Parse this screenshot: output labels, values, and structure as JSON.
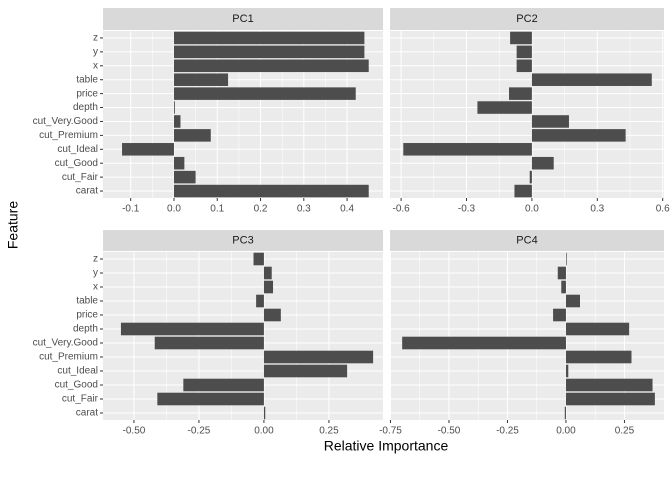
{
  "xlabel": "Relative Importance",
  "ylabel": "Feature",
  "chart_data": [
    {
      "type": "bar",
      "orientation": "horizontal",
      "title": "PC1",
      "color": "#4d4d4d",
      "grid": true,
      "categories": [
        "carat",
        "cut_Fair",
        "cut_Good",
        "cut_Ideal",
        "cut_Premium",
        "cut_Very.Good",
        "depth",
        "price",
        "table",
        "x",
        "y",
        "z"
      ],
      "values": [
        0.45,
        0.05,
        0.024,
        -0.12,
        0.085,
        0.015,
        0.002,
        0.42,
        0.125,
        0.45,
        0.44,
        0.44
      ],
      "xlim": [
        -0.164,
        0.483
      ],
      "xticks": [
        -0.1,
        {
          "value": 0,
          "label": "0.0"
        },
        0.1,
        0.2,
        0.3,
        0.4
      ]
    },
    {
      "type": "bar",
      "orientation": "horizontal",
      "title": "PC2",
      "color": "#4d4d4d",
      "grid": true,
      "categories": [
        "carat",
        "cut_Fair",
        "cut_Good",
        "cut_Ideal",
        "cut_Premium",
        "cut_Very.Good",
        "depth",
        "price",
        "table",
        "x",
        "y",
        "z"
      ],
      "values": [
        -0.08,
        -0.01,
        0.1,
        -0.59,
        0.43,
        0.17,
        -0.25,
        -0.105,
        0.55,
        -0.07,
        -0.07,
        -0.1
      ],
      "xlim": [
        -0.651,
        0.606
      ],
      "xticks": [
        -0.6,
        -0.3,
        {
          "value": 0,
          "label": "0.0"
        },
        0.3,
        0.6
      ]
    },
    {
      "type": "bar",
      "orientation": "horizontal",
      "title": "PC3",
      "color": "#4d4d4d",
      "grid": true,
      "categories": [
        "carat",
        "cut_Fair",
        "cut_Good",
        "cut_Ideal",
        "cut_Premium",
        "cut_Very.Good",
        "depth",
        "price",
        "table",
        "x",
        "y",
        "z"
      ],
      "values": [
        0.005,
        -0.41,
        -0.31,
        0.32,
        0.42,
        -0.42,
        -0.55,
        0.065,
        -0.03,
        0.035,
        0.03,
        -0.04
      ],
      "xlim": [
        -0.619,
        0.458
      ],
      "xticks": [
        {
          "value": -0.5,
          "label": "-0.50"
        },
        -0.25,
        {
          "value": 0,
          "label": "0.00"
        },
        0.25
      ]
    },
    {
      "type": "bar",
      "orientation": "horizontal",
      "title": "PC4",
      "color": "#4d4d4d",
      "grid": true,
      "categories": [
        "carat",
        "cut_Fair",
        "cut_Good",
        "cut_Ideal",
        "cut_Premium",
        "cut_Very.Good",
        "depth",
        "price",
        "table",
        "x",
        "y",
        "z"
      ],
      "values": [
        -0.005,
        0.38,
        0.37,
        0.01,
        0.28,
        -0.7,
        0.27,
        -0.055,
        0.06,
        -0.02,
        -0.035,
        0.003
      ],
      "xlim": [
        -0.752,
        0.419
      ],
      "xticks": [
        -0.75,
        {
          "value": -0.5,
          "label": "-0.50"
        },
        -0.25,
        {
          "value": 0,
          "label": "0.00"
        },
        0.25
      ]
    }
  ]
}
